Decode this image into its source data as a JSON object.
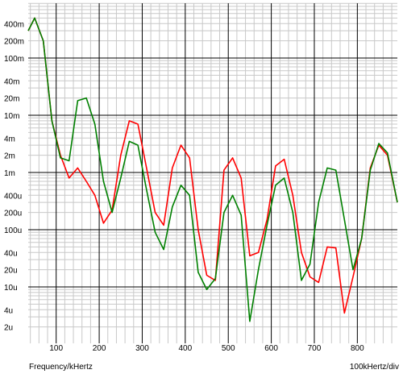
{
  "chart_data": {
    "type": "line",
    "xlabel": "Frequency/kHertz",
    "x_scale_label": "100kHertz/div",
    "xlim": [
      35,
      893
    ],
    "x_ticks": [
      100,
      200,
      300,
      400,
      500,
      600,
      700,
      800
    ],
    "x_tick_labels": [
      "100",
      "200",
      "300",
      "400",
      "500",
      "600",
      "700",
      "800"
    ],
    "yscale": "log",
    "ylim": [
      1e-06,
      0.6
    ],
    "y_ticks": [
      0.4,
      0.2,
      0.1,
      0.04,
      0.02,
      0.01,
      0.004,
      0.002,
      0.001,
      0.0004,
      0.0002,
      0.0001,
      4e-05,
      2e-05,
      1e-05,
      4e-06,
      2e-06
    ],
    "y_tick_labels": [
      "400m",
      "200m",
      "100m",
      "40m",
      "20m",
      "10m",
      "4m",
      "2m",
      "1m",
      "400u",
      "200u",
      "100u",
      "40u",
      "20u",
      "10u",
      "4u",
      "2u"
    ],
    "grid": true,
    "series": [
      {
        "color": "#ff0000",
        "x": [
          35,
          50,
          70,
          90,
          110,
          130,
          150,
          170,
          190,
          210,
          230,
          250,
          270,
          290,
          310,
          330,
          350,
          370,
          390,
          410,
          430,
          450,
          470,
          490,
          510,
          530,
          550,
          570,
          590,
          610,
          630,
          650,
          670,
          690,
          710,
          730,
          750,
          770,
          790,
          810,
          830,
          850,
          870,
          893
        ],
        "values": [
          0.3,
          0.5,
          0.2,
          0.008,
          0.002,
          0.0008,
          0.0012,
          0.0007,
          0.0004,
          0.00013,
          0.00022,
          0.002,
          0.008,
          0.007,
          0.0012,
          0.0002,
          0.00012,
          0.0012,
          0.003,
          0.0018,
          0.0001,
          1.6e-05,
          1.3e-05,
          0.0011,
          0.0018,
          0.0008,
          3.5e-05,
          4e-05,
          0.00015,
          0.0013,
          0.0017,
          0.0004,
          4e-05,
          1.5e-05,
          1.2e-05,
          5e-05,
          4.8e-05,
          3.5e-06,
          1.5e-05,
          7e-05,
          0.0012,
          0.003,
          0.002,
          0.0003
        ]
      },
      {
        "color": "#008000",
        "x": [
          35,
          50,
          70,
          90,
          110,
          130,
          150,
          170,
          190,
          210,
          230,
          250,
          270,
          290,
          310,
          330,
          350,
          370,
          390,
          410,
          430,
          450,
          470,
          490,
          510,
          530,
          550,
          570,
          590,
          610,
          630,
          650,
          670,
          690,
          710,
          730,
          750,
          770,
          790,
          810,
          830,
          850,
          870,
          893
        ],
        "values": [
          0.3,
          0.5,
          0.2,
          0.008,
          0.0018,
          0.0016,
          0.018,
          0.02,
          0.007,
          0.0007,
          0.0002,
          0.0008,
          0.0035,
          0.003,
          0.0005,
          9e-05,
          4.5e-05,
          0.00025,
          0.0006,
          0.0004,
          1.8e-05,
          9e-06,
          1.4e-05,
          0.0002,
          0.0004,
          0.00018,
          2.5e-06,
          2e-05,
          0.00012,
          0.0006,
          0.0008,
          0.0002,
          1.3e-05,
          2.5e-05,
          0.0003,
          0.0012,
          0.0011,
          0.00015,
          2e-05,
          7e-05,
          0.0011,
          0.0032,
          0.0022,
          0.0003
        ]
      }
    ]
  }
}
